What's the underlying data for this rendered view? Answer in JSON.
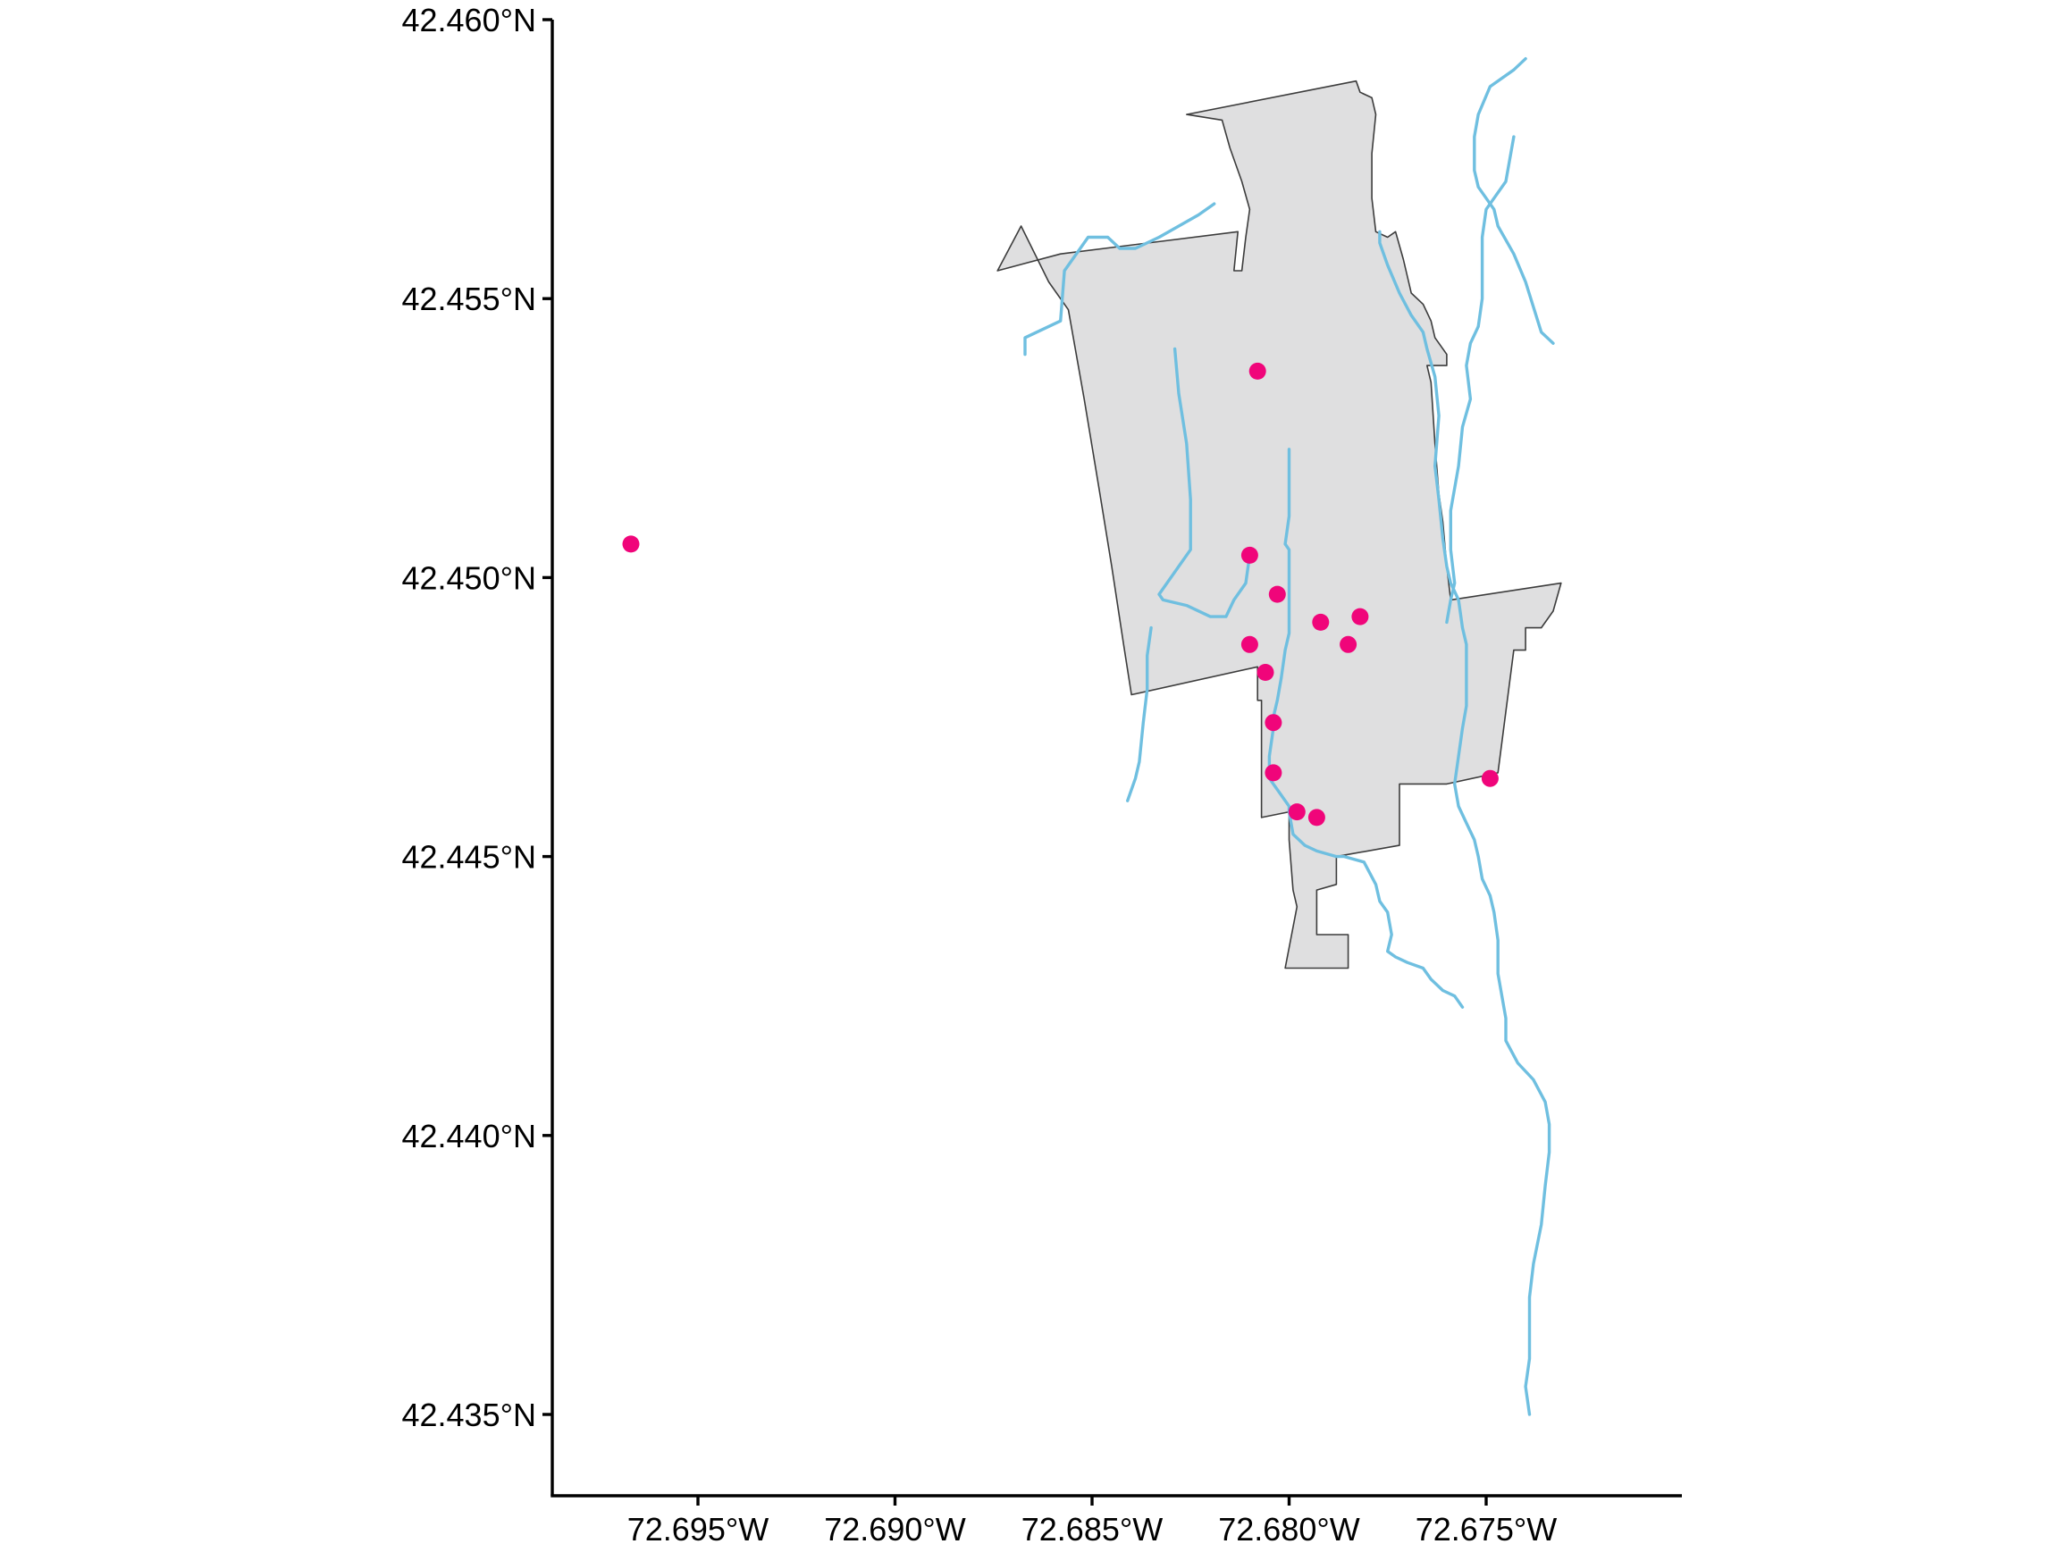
{
  "chart_data": {
    "type": "map",
    "title": "",
    "xlabel": "",
    "ylabel": "",
    "xlim": [
      -72.6976,
      -72.6706
    ],
    "ylim": [
      42.4335,
      42.4601
    ],
    "x_ticks": [
      {
        "value": -72.695,
        "label": "72.695°W"
      },
      {
        "value": -72.69,
        "label": "72.690°W"
      },
      {
        "value": -72.685,
        "label": "72.685°W"
      },
      {
        "value": -72.68,
        "label": "72.680°W"
      },
      {
        "value": -72.675,
        "label": "72.675°W"
      }
    ],
    "y_ticks": [
      {
        "value": 42.46,
        "label": "42.460°N"
      },
      {
        "value": 42.455,
        "label": "42.455°N"
      },
      {
        "value": 42.45,
        "label": "42.450°N"
      },
      {
        "value": 42.445,
        "label": "42.445°N"
      },
      {
        "value": 42.44,
        "label": "42.440°N"
      },
      {
        "value": 42.435,
        "label": "42.435°N"
      }
    ],
    "grid": false,
    "colors": {
      "boundary_fill": "#dfdfe0",
      "boundary_stroke": "#3c3c3c",
      "streams": "#6fbfe0",
      "points": "#f0057a"
    },
    "boundary": [
      [
        -72.6826,
        42.4583
      ],
      [
        -72.6783,
        42.4589
      ],
      [
        -72.6782,
        42.4587
      ],
      [
        -72.6779,
        42.4586
      ],
      [
        -72.6778,
        42.4583
      ],
      [
        -72.6779,
        42.4576
      ],
      [
        -72.6779,
        42.4568
      ],
      [
        -72.6778,
        42.4562
      ],
      [
        -72.6775,
        42.4561
      ],
      [
        -72.6773,
        42.4562
      ],
      [
        -72.6771,
        42.4557
      ],
      [
        -72.6769,
        42.4551
      ],
      [
        -72.6766,
        42.4549
      ],
      [
        -72.6764,
        42.4546
      ],
      [
        -72.6763,
        42.4543
      ],
      [
        -72.676,
        42.454
      ],
      [
        -72.676,
        42.4538
      ],
      [
        -72.6765,
        42.4538
      ],
      [
        -72.6764,
        42.4535
      ],
      [
        -72.6763,
        42.4524
      ],
      [
        -72.6762,
        42.4515
      ],
      [
        -72.6761,
        42.451
      ],
      [
        -72.676,
        42.4502
      ],
      [
        -72.6759,
        42.4496
      ],
      [
        -72.6731,
        42.4499
      ],
      [
        -72.6733,
        42.4494
      ],
      [
        -72.6736,
        42.4491
      ],
      [
        -72.674,
        42.4491
      ],
      [
        -72.674,
        42.4487
      ],
      [
        -72.6743,
        42.4487
      ],
      [
        -72.6747,
        42.4465
      ],
      [
        -72.676,
        42.4463
      ],
      [
        -72.6772,
        42.4463
      ],
      [
        -72.6772,
        42.4452
      ],
      [
        -72.6788,
        42.445
      ],
      [
        -72.6788,
        42.4445
      ],
      [
        -72.6793,
        42.4444
      ],
      [
        -72.6793,
        42.4436
      ],
      [
        -72.6785,
        42.4436
      ],
      [
        -72.6785,
        42.443
      ],
      [
        -72.6801,
        42.443
      ],
      [
        -72.6798,
        42.4441
      ],
      [
        -72.6799,
        42.4444
      ],
      [
        -72.68,
        42.4453
      ],
      [
        -72.68,
        42.4458
      ],
      [
        -72.6807,
        42.4457
      ],
      [
        -72.6807,
        42.4465
      ],
      [
        -72.6807,
        42.4473
      ],
      [
        -72.6807,
        42.4478
      ],
      [
        -72.6808,
        42.4478
      ],
      [
        -72.6808,
        42.4484
      ],
      [
        -72.684,
        42.4479
      ],
      [
        -72.6842,
        42.4488
      ],
      [
        -72.6845,
        42.4502
      ],
      [
        -72.6848,
        42.4515
      ],
      [
        -72.6852,
        42.4532
      ],
      [
        -72.6856,
        42.4548
      ],
      [
        -72.6861,
        42.4553
      ],
      [
        -72.6868,
        42.4563
      ],
      [
        -72.6874,
        42.4555
      ],
      [
        -72.6858,
        42.4558
      ],
      [
        -72.6813,
        42.4562
      ],
      [
        -72.6814,
        42.4555
      ],
      [
        -72.6812,
        42.4555
      ],
      [
        -72.6811,
        42.4561
      ],
      [
        -72.681,
        42.4566
      ],
      [
        -72.6812,
        42.4571
      ],
      [
        -72.6815,
        42.4577
      ],
      [
        -72.6817,
        42.4582
      ],
      [
        -72.6826,
        42.4583
      ]
    ],
    "streams": [
      [
        [
          -72.6867,
          42.454
        ],
        [
          -72.6867,
          42.4543
        ],
        [
          -72.6858,
          42.4546
        ],
        [
          -72.6857,
          42.4555
        ],
        [
          -72.6853,
          42.4559
        ],
        [
          -72.6851,
          42.4561
        ],
        [
          -72.6846,
          42.4561
        ],
        [
          -72.6843,
          42.4559
        ],
        [
          -72.6839,
          42.4559
        ],
        [
          -72.6833,
          42.4561
        ],
        [
          -72.6823,
          42.4565
        ],
        [
          -72.6819,
          42.4567
        ]
      ],
      [
        [
          -72.6829,
          42.4541
        ],
        [
          -72.6828,
          42.4533
        ],
        [
          -72.6826,
          42.4524
        ],
        [
          -72.6825,
          42.4514
        ],
        [
          -72.6825,
          42.4505
        ],
        [
          -72.6828,
          42.4502
        ],
        [
          -72.6833,
          42.4497
        ],
        [
          -72.6832,
          42.4496
        ],
        [
          -72.6826,
          42.4495
        ],
        [
          -72.682,
          42.4493
        ],
        [
          -72.6816,
          42.4493
        ],
        [
          -72.6814,
          42.4496
        ],
        [
          -72.6811,
          42.4499
        ],
        [
          -72.681,
          42.4504
        ]
      ],
      [
        [
          -72.68,
          42.4523
        ],
        [
          -72.68,
          42.4511
        ],
        [
          -72.6801,
          42.4506
        ],
        [
          -72.68,
          42.4505
        ],
        [
          -72.68,
          42.45
        ],
        [
          -72.68,
          42.4493
        ],
        [
          -72.68,
          42.449
        ],
        [
          -72.6801,
          42.4487
        ],
        [
          -72.6802,
          42.4482
        ],
        [
          -72.6803,
          42.4478
        ],
        [
          -72.6804,
          42.4475
        ],
        [
          -72.6804,
          42.4473
        ],
        [
          -72.6805,
          42.4468
        ],
        [
          -72.6805,
          42.4464
        ],
        [
          -72.6802,
          42.4461
        ],
        [
          -72.68,
          42.4459
        ],
        [
          -72.68,
          42.4458
        ],
        [
          -72.6799,
          42.4454
        ],
        [
          -72.6796,
          42.4452
        ],
        [
          -72.6793,
          42.4451
        ],
        [
          -72.6788,
          42.445
        ],
        [
          -72.6786,
          42.445
        ],
        [
          -72.6781,
          42.4449
        ],
        [
          -72.6778,
          42.4445
        ],
        [
          -72.6777,
          42.4442
        ],
        [
          -72.6775,
          42.444
        ],
        [
          -72.6774,
          42.4436
        ],
        [
          -72.6775,
          42.4433
        ],
        [
          -72.6773,
          42.4432
        ],
        [
          -72.677,
          42.4431
        ],
        [
          -72.6766,
          42.443
        ],
        [
          -72.6764,
          42.4428
        ],
        [
          -72.6761,
          42.4426
        ],
        [
          -72.6758,
          42.4425
        ],
        [
          -72.6756,
          42.4423
        ]
      ],
      [
        [
          -72.6835,
          42.4491
        ],
        [
          -72.6836,
          42.4486
        ],
        [
          -72.6836,
          42.448
        ],
        [
          -72.6837,
          42.4474
        ],
        [
          -72.6838,
          42.4467
        ],
        [
          -72.6839,
          42.4464
        ],
        [
          -72.6841,
          42.446
        ]
      ],
      [
        [
          -72.6777,
          42.4562
        ],
        [
          -72.6777,
          42.456
        ],
        [
          -72.6775,
          42.4556
        ],
        [
          -72.6772,
          42.4551
        ],
        [
          -72.6769,
          42.4547
        ],
        [
          -72.6766,
          42.4544
        ],
        [
          -72.6765,
          42.4541
        ],
        [
          -72.6763,
          42.4536
        ],
        [
          -72.6762,
          42.4529
        ],
        [
          -72.6763,
          42.452
        ],
        [
          -72.6762,
          42.4514
        ],
        [
          -72.6761,
          42.4507
        ],
        [
          -72.676,
          42.4502
        ],
        [
          -72.6759,
          42.4499
        ],
        [
          -72.6757,
          42.4496
        ],
        [
          -72.6756,
          42.4491
        ],
        [
          -72.6755,
          42.4488
        ],
        [
          -72.6755,
          42.4484
        ],
        [
          -72.6755,
          42.4477
        ],
        [
          -72.6756,
          42.4473
        ],
        [
          -72.6757,
          42.4468
        ],
        [
          -72.6758,
          42.4463
        ],
        [
          -72.6757,
          42.4459
        ],
        [
          -72.6755,
          42.4456
        ],
        [
          -72.6753,
          42.4453
        ],
        [
          -72.6752,
          42.445
        ],
        [
          -72.6751,
          42.4446
        ],
        [
          -72.6749,
          42.4443
        ],
        [
          -72.6748,
          42.444
        ],
        [
          -72.6747,
          42.4435
        ],
        [
          -72.6747,
          42.4429
        ],
        [
          -72.6746,
          42.4425
        ],
        [
          -72.6745,
          42.4421
        ],
        [
          -72.6745,
          42.4417
        ],
        [
          -72.6742,
          42.4413
        ],
        [
          -72.6738,
          42.441
        ],
        [
          -72.6735,
          42.4406
        ],
        [
          -72.6734,
          42.4402
        ],
        [
          -72.6734,
          42.4397
        ],
        [
          -72.6735,
          42.4391
        ],
        [
          -72.6736,
          42.4384
        ],
        [
          -72.6738,
          42.4377
        ],
        [
          -72.6739,
          42.4371
        ],
        [
          -72.6739,
          42.4365
        ],
        [
          -72.6739,
          42.436
        ],
        [
          -72.674,
          42.4355
        ],
        [
          -72.6739,
          42.435
        ]
      ],
      [
        [
          -72.6733,
          42.4542
        ],
        [
          -72.6736,
          42.4544
        ],
        [
          -72.674,
          42.4553
        ],
        [
          -72.6743,
          42.4558
        ],
        [
          -72.6747,
          42.4563
        ],
        [
          -72.6748,
          42.4566
        ],
        [
          -72.6752,
          42.457
        ],
        [
          -72.6753,
          42.4573
        ],
        [
          -72.6753,
          42.4579
        ],
        [
          -72.6752,
          42.4583
        ],
        [
          -72.6749,
          42.4588
        ],
        [
          -72.6743,
          42.4591
        ],
        [
          -72.674,
          42.4593
        ]
      ],
      [
        [
          -72.6743,
          42.4579
        ],
        [
          -72.6745,
          42.4571
        ],
        [
          -72.675,
          42.4566
        ],
        [
          -72.6751,
          42.4561
        ],
        [
          -72.6751,
          42.455
        ],
        [
          -72.6752,
          42.4545
        ],
        [
          -72.6754,
          42.4542
        ],
        [
          -72.6755,
          42.4538
        ],
        [
          -72.6754,
          42.4532
        ],
        [
          -72.6756,
          42.4527
        ],
        [
          -72.6757,
          42.452
        ],
        [
          -72.6759,
          42.4512
        ],
        [
          -72.6759,
          42.4505
        ],
        [
          -72.6758,
          42.4499
        ],
        [
          -72.6759,
          42.4496
        ],
        [
          -72.676,
          42.4492
        ]
      ]
    ],
    "points": [
      {
        "lon": -72.6967,
        "lat": 42.4506
      },
      {
        "lon": -72.6808,
        "lat": 42.4537
      },
      {
        "lon": -72.681,
        "lat": 42.4504
      },
      {
        "lon": -72.6803,
        "lat": 42.4497
      },
      {
        "lon": -72.6792,
        "lat": 42.4492
      },
      {
        "lon": -72.6782,
        "lat": 42.4493
      },
      {
        "lon": -72.6785,
        "lat": 42.4488
      },
      {
        "lon": -72.681,
        "lat": 42.4488
      },
      {
        "lon": -72.6806,
        "lat": 42.4483
      },
      {
        "lon": -72.6804,
        "lat": 42.4474
      },
      {
        "lon": -72.6804,
        "lat": 42.4465
      },
      {
        "lon": -72.6798,
        "lat": 42.4458
      },
      {
        "lon": -72.6793,
        "lat": 42.4457
      },
      {
        "lon": -72.6749,
        "lat": 42.4464
      }
    ]
  }
}
